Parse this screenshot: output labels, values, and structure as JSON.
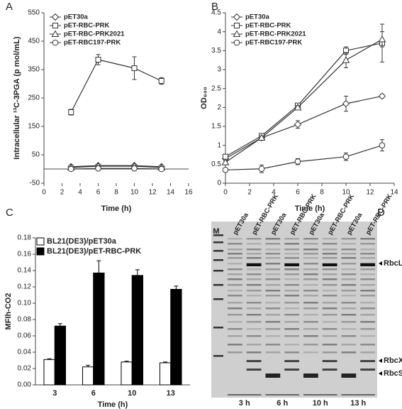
{
  "chart_data": [
    {
      "type": "line",
      "panel": "A",
      "xlabel": "Time (h)",
      "ylabel": "Intracellular ¹³C-3PGA (p mol/mL)",
      "x": [
        3,
        6,
        10,
        13
      ],
      "xlim": [
        0,
        16
      ],
      "xticks": [
        0,
        2,
        4,
        6,
        8,
        10,
        12,
        14,
        16
      ],
      "ylim": [
        -50,
        550
      ],
      "yticks": [
        -50,
        50,
        150,
        250,
        350,
        450,
        550
      ],
      "series": [
        {
          "name": "pET30a",
          "marker": "diamond",
          "values": [
            8,
            12,
            12,
            8
          ],
          "errors": [
            3,
            3,
            3,
            3
          ]
        },
        {
          "name": "pET-RBC-PRK",
          "marker": "square",
          "values": [
            200,
            385,
            355,
            310
          ],
          "errors": [
            10,
            18,
            40,
            12
          ]
        },
        {
          "name": "pET-RBC-PRK2021",
          "marker": "triangle",
          "values": [
            5,
            10,
            10,
            5
          ],
          "errors": [
            3,
            3,
            3,
            3
          ]
        },
        {
          "name": "pET-RBC197-PRK",
          "marker": "circle",
          "values": [
            0,
            2,
            2,
            0
          ],
          "errors": [
            3,
            3,
            3,
            3
          ]
        }
      ]
    },
    {
      "type": "line",
      "panel": "B",
      "xlabel": "Time (h)",
      "ylabel": "OD₆₀₀",
      "x": [
        0,
        3,
        6,
        10,
        13
      ],
      "xlim": [
        0,
        14
      ],
      "xticks": [
        0,
        2,
        4,
        6,
        8,
        10,
        12,
        14
      ],
      "ylim": [
        0,
        4.5
      ],
      "yticks": [
        0,
        0.5,
        1,
        1.5,
        2,
        2.5,
        3,
        3.5,
        4,
        4.5
      ],
      "series": [
        {
          "name": "pET30a",
          "marker": "diamond",
          "values": [
            0.65,
            1.2,
            1.55,
            2.1,
            2.3
          ],
          "errors": [
            0.05,
            0.05,
            0.1,
            0.2,
            0.05
          ]
        },
        {
          "name": "pET-RBC-PRK",
          "marker": "square",
          "values": [
            0.7,
            1.25,
            2.05,
            3.5,
            3.7
          ],
          "errors": [
            0.05,
            0.05,
            0.05,
            0.1,
            0.5
          ]
        },
        {
          "name": "pET-RBC-PRK2021",
          "marker": "triangle",
          "values": [
            0.55,
            1.2,
            2.0,
            3.25,
            3.8
          ],
          "errors": [
            0.05,
            0.05,
            0.05,
            0.2,
            0.2
          ]
        },
        {
          "name": "pET-RBC197-PRK",
          "marker": "circle",
          "values": [
            0.35,
            0.38,
            0.57,
            0.7,
            1.0
          ],
          "errors": [
            0.05,
            0.1,
            0.08,
            0.1,
            0.15
          ]
        }
      ]
    },
    {
      "type": "bar",
      "panel": "C",
      "xlabel": "Time (h)",
      "ylabel": "MFIh-CO2",
      "categories": [
        "3",
        "6",
        "10",
        "13"
      ],
      "ylim": [
        0,
        0.18
      ],
      "yticks": [
        {
          "value": 0,
          "label": "0.00"
        },
        {
          "value": 0.02,
          "label": "0.02"
        },
        {
          "value": 0.04,
          "label": "0.04"
        },
        {
          "value": 0.06,
          "label": "0.06"
        },
        {
          "value": 0.08,
          "label": "0.08"
        },
        {
          "value": 0.1,
          "label": "0.10"
        },
        {
          "value": 0.12,
          "label": "0.12"
        },
        {
          "value": 0.14,
          "label": "0.14"
        },
        {
          "value": 0.16,
          "label": "0.16"
        },
        {
          "value": 0.18,
          "label": "0.18"
        }
      ],
      "series": [
        {
          "name": "BL21(DE3)/pET30a",
          "color": "#ffffff",
          "values": [
            0.031,
            0.022,
            0.028,
            0.027
          ],
          "errors": [
            0.001,
            0.002,
            0.001,
            0.001
          ]
        },
        {
          "name": "BL21(DE3)/pET-RBC-PRK",
          "color": "#000000",
          "values": [
            0.072,
            0.137,
            0.134,
            0.117
          ],
          "errors": [
            0.003,
            0.015,
            0.007,
            0.004
          ]
        }
      ]
    }
  ],
  "gel": {
    "panel": "D",
    "marker_label": "M",
    "lanes": [
      "pET30a",
      "pET-RBC-PRK",
      "pET30a",
      "pET-RBC-PRK",
      "pET30a",
      "pET-RBC-PRK",
      "pET30a",
      "pET-RBC-PRK"
    ],
    "bands": [
      "RbcL",
      "RbcX",
      "RbcS"
    ],
    "times": [
      "3 h",
      "6 h",
      "10 h",
      "13 h"
    ]
  }
}
